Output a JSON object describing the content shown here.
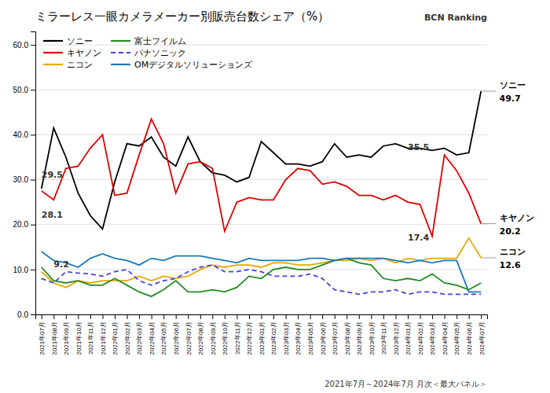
{
  "chart_data": {
    "type": "line",
    "title": "ミラーレス一眼カメラメーカー別販売台数シェア（%）",
    "subtitle": "2021年7月～2024年7月 月次＜最大パネル＞",
    "categories": [
      "2021年07月",
      "2021年08月",
      "2021年09月",
      "2021年10月",
      "2021年11月",
      "2021年12月",
      "2022年01月",
      "2022年02月",
      "2022年03月",
      "2022年04月",
      "2022年05月",
      "2022年06月",
      "2022年07月",
      "2022年08月",
      "2022年09月",
      "2022年10月",
      "2022年11月",
      "2022年12月",
      "2023年01月",
      "2023年02月",
      "2023年03月",
      "2023年04月",
      "2023年05月",
      "2023年06月",
      "2023年07月",
      "2023年08月",
      "2023年09月",
      "2023年10月",
      "2023年11月",
      "2023年12月",
      "2024年01月",
      "2024年02月",
      "2024年03月",
      "2024年04月",
      "2024年05月",
      "2024年06月",
      "2024年07月"
    ],
    "series": [
      {
        "name": "ソニー",
        "color": "#000000",
        "line_style": "solid",
        "values": [
          28.0,
          41.5,
          35.0,
          27.0,
          22.0,
          19.0,
          29.5,
          38.0,
          37.5,
          39.5,
          35.0,
          33.0,
          39.5,
          34.0,
          31.5,
          31.0,
          29.5,
          30.5,
          38.5,
          36.0,
          33.5,
          33.5,
          33.0,
          34.0,
          38.0,
          35.0,
          35.5,
          35.0,
          37.5,
          38.0,
          37.0,
          37.0,
          36.5,
          37.0,
          35.5,
          36.0,
          49.7
        ]
      },
      {
        "name": "キヤノン",
        "color": "#e00000",
        "line_style": "solid",
        "values": [
          27.5,
          25.5,
          32.5,
          33.0,
          37.0,
          40.0,
          26.5,
          27.0,
          35.5,
          43.5,
          38.0,
          27.0,
          33.5,
          34.0,
          32.5,
          18.5,
          25.0,
          26.0,
          25.5,
          25.5,
          30.0,
          32.5,
          32.0,
          29.0,
          29.5,
          28.5,
          26.5,
          26.5,
          25.5,
          26.5,
          25.0,
          24.5,
          17.4,
          35.5,
          32.0,
          27.0,
          20.2
        ]
      },
      {
        "name": "ニコン",
        "color": "#e8a800",
        "line_style": "solid",
        "values": [
          9.5,
          7.0,
          6.0,
          7.5,
          7.0,
          7.5,
          7.5,
          7.5,
          8.5,
          7.5,
          8.5,
          8.0,
          8.5,
          10.0,
          11.0,
          10.5,
          11.0,
          11.0,
          10.5,
          11.5,
          11.5,
          11.0,
          11.0,
          11.5,
          12.0,
          12.0,
          12.5,
          12.0,
          12.5,
          11.5,
          12.5,
          12.0,
          12.5,
          12.5,
          12.5,
          17.0,
          12.6
        ]
      },
      {
        "name": "富士フイルム",
        "color": "#228b22",
        "line_style": "solid",
        "values": [
          10.5,
          7.5,
          7.0,
          7.5,
          6.5,
          6.5,
          8.0,
          6.5,
          5.0,
          4.0,
          5.5,
          7.5,
          5.0,
          5.0,
          5.5,
          5.0,
          6.0,
          8.5,
          8.0,
          10.0,
          10.5,
          10.0,
          10.0,
          11.0,
          12.0,
          12.5,
          11.5,
          11.0,
          8.0,
          7.5,
          8.0,
          7.5,
          9.0,
          7.0,
          6.5,
          5.5,
          7.0
        ]
      },
      {
        "name": "パナソニック",
        "color": "#4444dd",
        "line_style": "dashed",
        "values": [
          8.0,
          7.0,
          9.5,
          9.2,
          9.0,
          8.5,
          9.5,
          10.0,
          7.5,
          6.5,
          7.5,
          8.0,
          9.5,
          10.5,
          11.0,
          9.5,
          9.5,
          10.0,
          9.5,
          8.5,
          8.5,
          8.5,
          9.0,
          8.0,
          5.5,
          5.0,
          4.5,
          5.0,
          5.0,
          5.5,
          4.5,
          5.0,
          5.0,
          4.5,
          4.5,
          4.5,
          4.5
        ]
      },
      {
        "name": "OMデジタルソリューションズ",
        "color": "#1a7ab5",
        "line_style": "solid",
        "values": [
          14.0,
          12.0,
          11.5,
          10.5,
          12.5,
          13.5,
          12.5,
          12.0,
          11.0,
          12.5,
          12.0,
          13.0,
          13.0,
          13.0,
          12.5,
          12.0,
          11.5,
          12.5,
          12.0,
          12.0,
          12.0,
          12.0,
          12.5,
          12.5,
          12.0,
          12.5,
          12.5,
          12.5,
          12.5,
          12.0,
          11.5,
          12.0,
          11.5,
          12.0,
          12.0,
          5.0,
          5.0
        ]
      }
    ],
    "ylim": [
      0.0,
      63.0
    ],
    "yticks": [
      {
        "value": 0,
        "label": "0.0"
      },
      {
        "value": 10,
        "label": "10.0"
      },
      {
        "value": 20,
        "label": "20.0"
      },
      {
        "value": 30,
        "label": "30.0"
      },
      {
        "value": 40,
        "label": "40.0"
      },
      {
        "value": 50,
        "label": "50.0"
      },
      {
        "value": 60,
        "label": "60.0"
      }
    ],
    "grid": true,
    "legend": "upper left",
    "end_labels": [
      {
        "name": "ソニー",
        "value": 49.7
      },
      {
        "name": "キヤノン",
        "value": 20.2
      },
      {
        "name": "ニコン",
        "value": 12.6
      }
    ],
    "annotations": [
      {
        "text": "BCN Ranking"
      },
      {
        "text": "29.5",
        "x": "2021年07月",
        "y": 30.5
      },
      {
        "text": "28.1",
        "x": "2021年07月",
        "y": 21.5
      },
      {
        "text": "9.2",
        "x": "2021年08月",
        "y": 10.5
      },
      {
        "text": "17.4",
        "x": "2024年01月",
        "y": 16.5
      },
      {
        "text": "35.5",
        "x": "2024年01月",
        "y": 36.5
      }
    ]
  }
}
